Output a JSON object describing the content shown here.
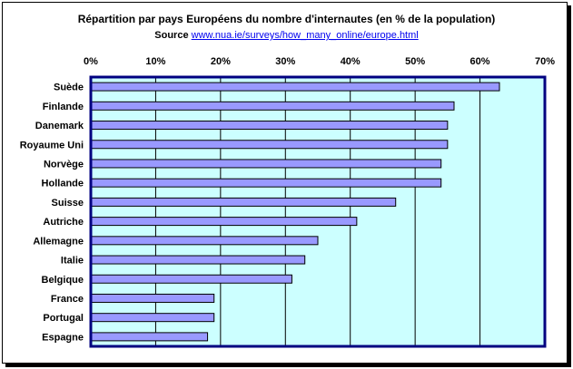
{
  "chart_data": {
    "type": "bar",
    "orientation": "horizontal",
    "title": "Répartition par pays Européens du nombre d'internautes (en % de la population)",
    "source_label": "Source",
    "source_url": "www.nua.ie/surveys/how_many_online/europe.html",
    "categories": [
      "Suède",
      "Finlande",
      "Danemark",
      "Royaume Uni",
      "Norvège",
      "Hollande",
      "Suisse",
      "Autriche",
      "Allemagne",
      "Italie",
      "Belgique",
      "France",
      "Portugal",
      "Espagne"
    ],
    "values": [
      63,
      56,
      55,
      55,
      54,
      54,
      47,
      41,
      35,
      33,
      31,
      19,
      19,
      18
    ],
    "xlim": [
      0,
      70
    ],
    "xticks": [
      "0%",
      "10%",
      "20%",
      "30%",
      "40%",
      "50%",
      "60%",
      "70%"
    ],
    "tick_position": "top",
    "grid": true,
    "colors": {
      "plot_background": "#ccffff",
      "bar_fill": "#9999ff",
      "bar_stroke": "#000000",
      "plot_border": "#000080",
      "gridline": "#000000"
    }
  }
}
